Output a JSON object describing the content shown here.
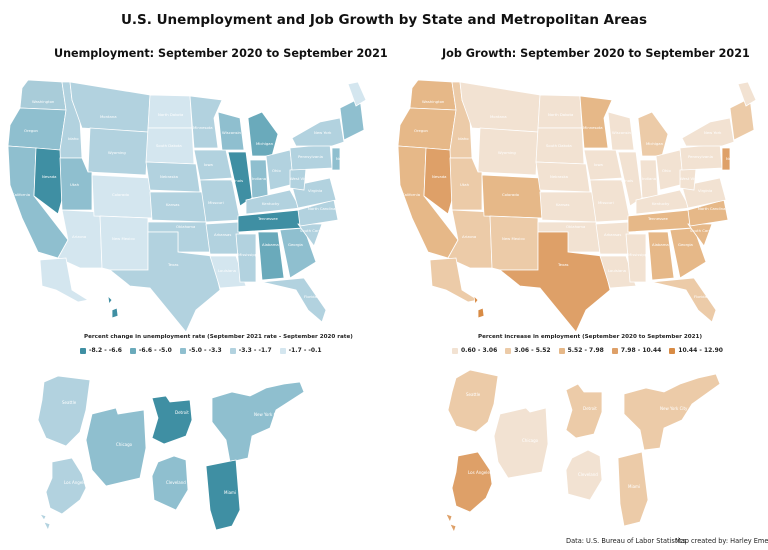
{
  "title": "U.S. Unemployment and Job Growth by State and Metropolitan Areas",
  "left_map": {
    "subtitle": "Unemployment: September 2020 to September 2021",
    "legend_title": "Percent change in unemployment rate (September 2021 rate - September 2020 rate)",
    "legend": [
      {
        "label": "-8.2 - -6.6",
        "color": "#3f8fa3"
      },
      {
        "label": "-6.6 - -5.0",
        "color": "#6aaabb"
      },
      {
        "label": "-5.0 - -3.3",
        "color": "#8fbfcf"
      },
      {
        "label": "-3.3 - -1.7",
        "color": "#b2d2df"
      },
      {
        "label": "-1.7 - -0.1",
        "color": "#d4e6ef"
      }
    ],
    "state_labels": [
      "Washington",
      "Montana",
      "North Dakota",
      "Minnesota",
      "Oregon",
      "Idaho",
      "South Dakota",
      "Wisconsin",
      "Michigan",
      "New York",
      "Wyoming",
      "Iowa",
      "Nebraska",
      "Nevada",
      "Utah",
      "Colorado",
      "Illinois",
      "Indiana",
      "Ohio",
      "Pennsylvania",
      "California",
      "Kansas",
      "Missouri",
      "Kentucky",
      "West Virginia",
      "Virginia",
      "New Jersey",
      "Arizona",
      "New Mexico",
      "Oklahoma",
      "Arkansas",
      "Tennessee",
      "North Carolina",
      "South Carolina",
      "Mississippi",
      "Alabama",
      "Georgia",
      "Texas",
      "Louisiana",
      "Florida"
    ],
    "metros": [
      "Seattle",
      "Chicago",
      "Detroit",
      "New York City",
      "Los Angeles",
      "Cleveland",
      "Miami"
    ]
  },
  "right_map": {
    "subtitle": "Job Growth: September 2020 to September 2021",
    "legend_title": "Percent increase in employment (September 2020 to September 2021)",
    "legend": [
      {
        "label": "0.60 - 3.06",
        "color": "#f2e2d2"
      },
      {
        "label": "3.06 - 5.52",
        "color": "#eccba8"
      },
      {
        "label": "5.52 - 7.98",
        "color": "#e6b888"
      },
      {
        "label": "7.98 - 10.44",
        "color": "#dea068"
      },
      {
        "label": "10.44 - 12.90",
        "color": "#d88b45"
      }
    ],
    "state_labels": [
      "Washington",
      "Montana",
      "North Dakota",
      "Minnesota",
      "Oregon",
      "Idaho",
      "South Dakota",
      "Wisconsin",
      "Michigan",
      "New York",
      "Wyoming",
      "Iowa",
      "Nebraska",
      "Nevada",
      "Utah",
      "Colorado",
      "Illinois",
      "Indiana",
      "Ohio",
      "Pennsylvania",
      "California",
      "Kansas",
      "Missouri",
      "Kentucky",
      "West Virginia",
      "Virginia",
      "New Jersey",
      "Arizona",
      "New Mexico",
      "Oklahoma",
      "Arkansas",
      "Tennessee",
      "North Carolina",
      "South Carolina",
      "Mississippi",
      "Alabama",
      "Georgia",
      "Texas",
      "Louisiana",
      "Florida"
    ],
    "metros": [
      "Seattle",
      "Chicago",
      "Detroit",
      "New York City",
      "Los Angeles",
      "Cleveland",
      "Miami"
    ]
  },
  "footer": {
    "source": "Data: U.S. Bureau of Labor Statistics",
    "credit": "Map created by: Harley Emery"
  }
}
